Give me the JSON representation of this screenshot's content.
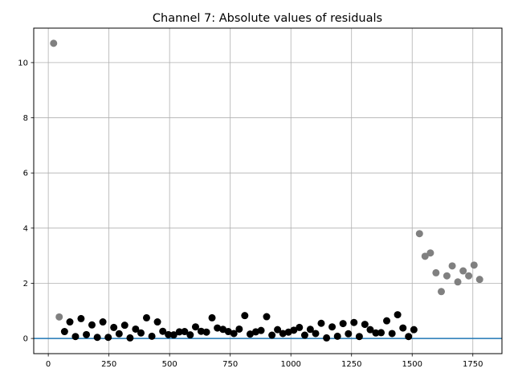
{
  "chart_data": {
    "type": "scatter",
    "title": "Channel 7: Absolute values of residuals",
    "xlabel": "",
    "ylabel": "",
    "xlim": [
      -60,
      1870
    ],
    "ylim": [
      -0.55,
      11.25
    ],
    "xticks": [
      0,
      250,
      500,
      750,
      1000,
      1250,
      1500,
      1750
    ],
    "yticks": [
      0,
      2,
      4,
      6,
      8,
      10
    ],
    "grid": true,
    "reference_line": {
      "y": 0,
      "color": "#1f77b4"
    },
    "series": [
      {
        "color": "#000000",
        "points": [
          [
            67,
            0.25
          ],
          [
            89,
            0.6
          ],
          [
            112,
            0.07
          ],
          [
            135,
            0.72
          ],
          [
            157,
            0.14
          ],
          [
            180,
            0.49
          ],
          [
            202,
            0.04
          ],
          [
            225,
            0.6
          ],
          [
            247,
            0.04
          ],
          [
            270,
            0.4
          ],
          [
            292,
            0.17
          ],
          [
            315,
            0.48
          ],
          [
            337,
            0.02
          ],
          [
            360,
            0.34
          ],
          [
            382,
            0.2
          ],
          [
            405,
            0.75
          ],
          [
            427,
            0.08
          ],
          [
            450,
            0.6
          ],
          [
            472,
            0.26
          ],
          [
            495,
            0.14
          ],
          [
            517,
            0.13
          ],
          [
            540,
            0.24
          ],
          [
            562,
            0.25
          ],
          [
            585,
            0.13
          ],
          [
            607,
            0.42
          ],
          [
            630,
            0.26
          ],
          [
            652,
            0.23
          ],
          [
            675,
            0.75
          ],
          [
            697,
            0.38
          ],
          [
            720,
            0.33
          ],
          [
            742,
            0.25
          ],
          [
            765,
            0.18
          ],
          [
            787,
            0.34
          ],
          [
            810,
            0.83
          ],
          [
            832,
            0.16
          ],
          [
            855,
            0.24
          ],
          [
            877,
            0.29
          ],
          [
            900,
            0.79
          ],
          [
            922,
            0.12
          ],
          [
            945,
            0.32
          ],
          [
            967,
            0.18
          ],
          [
            990,
            0.23
          ],
          [
            1012,
            0.3
          ],
          [
            1035,
            0.4
          ],
          [
            1057,
            0.12
          ],
          [
            1080,
            0.33
          ],
          [
            1102,
            0.18
          ],
          [
            1125,
            0.55
          ],
          [
            1147,
            0.02
          ],
          [
            1170,
            0.42
          ],
          [
            1192,
            0.08
          ],
          [
            1215,
            0.54
          ],
          [
            1237,
            0.17
          ],
          [
            1260,
            0.58
          ],
          [
            1282,
            0.07
          ],
          [
            1305,
            0.51
          ],
          [
            1327,
            0.32
          ],
          [
            1350,
            0.2
          ],
          [
            1372,
            0.21
          ],
          [
            1395,
            0.64
          ],
          [
            1417,
            0.18
          ],
          [
            1440,
            0.86
          ],
          [
            1462,
            0.38
          ],
          [
            1485,
            0.07
          ],
          [
            1507,
            0.32
          ]
        ]
      },
      {
        "color": "#808080",
        "points": [
          [
            22,
            10.7
          ],
          [
            45,
            0.78
          ],
          [
            1530,
            3.8
          ],
          [
            1553,
            2.98
          ],
          [
            1575,
            3.1
          ],
          [
            1598,
            2.38
          ],
          [
            1620,
            1.7
          ],
          [
            1643,
            2.27
          ],
          [
            1665,
            2.63
          ],
          [
            1688,
            2.05
          ],
          [
            1710,
            2.45
          ],
          [
            1733,
            2.27
          ],
          [
            1755,
            2.66
          ],
          [
            1778,
            2.14
          ]
        ]
      }
    ]
  }
}
